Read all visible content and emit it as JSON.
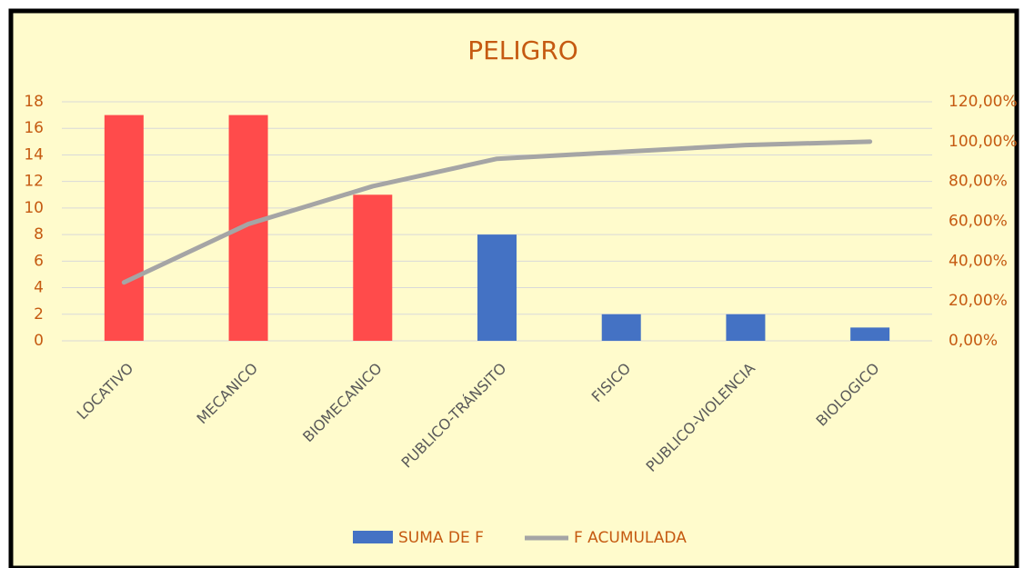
{
  "chart_data": {
    "type": "pareto",
    "title": "PELIGRO",
    "categories": [
      "LOCATIVO",
      "MECANICO",
      "BIOMECANICO",
      "PUBLICO-TRÁNSITO",
      "FISICO",
      "PUBLICO-VIOLENCIA",
      "BIOLOGICO"
    ],
    "series": [
      {
        "name": "SUMA DE F",
        "color": "#4472c4",
        "values": [
          17,
          17,
          11,
          8,
          2,
          2,
          1
        ],
        "colors": [
          "#ff4b4b",
          "#ff4b4b",
          "#ff4b4b",
          "#4472c4",
          "#4472c4",
          "#4472c4",
          "#4472c4"
        ]
      },
      {
        "name": "F ACUMULADA",
        "color": "#a5a5a5",
        "axis": "y2",
        "values": [
          29.31,
          58.62,
          77.59,
          91.38,
          94.83,
          98.28,
          100
        ]
      }
    ],
    "ylim": [
      0,
      18
    ],
    "yticks": [
      0,
      2,
      4,
      6,
      8,
      10,
      12,
      14,
      16,
      18
    ],
    "y2lim": [
      0,
      120
    ],
    "y2ticks": [
      {
        "value": 0,
        "label": "0,00%"
      },
      {
        "value": 20,
        "label": "20,00%"
      },
      {
        "value": 40,
        "label": "40,00%"
      },
      {
        "value": 60,
        "label": "60,00%"
      },
      {
        "value": 80,
        "label": "80,00%"
      },
      {
        "value": 100,
        "label": "100,00%"
      },
      {
        "value": 120,
        "label": "120,00%"
      }
    ],
    "grid": true,
    "legend": "bottom"
  }
}
